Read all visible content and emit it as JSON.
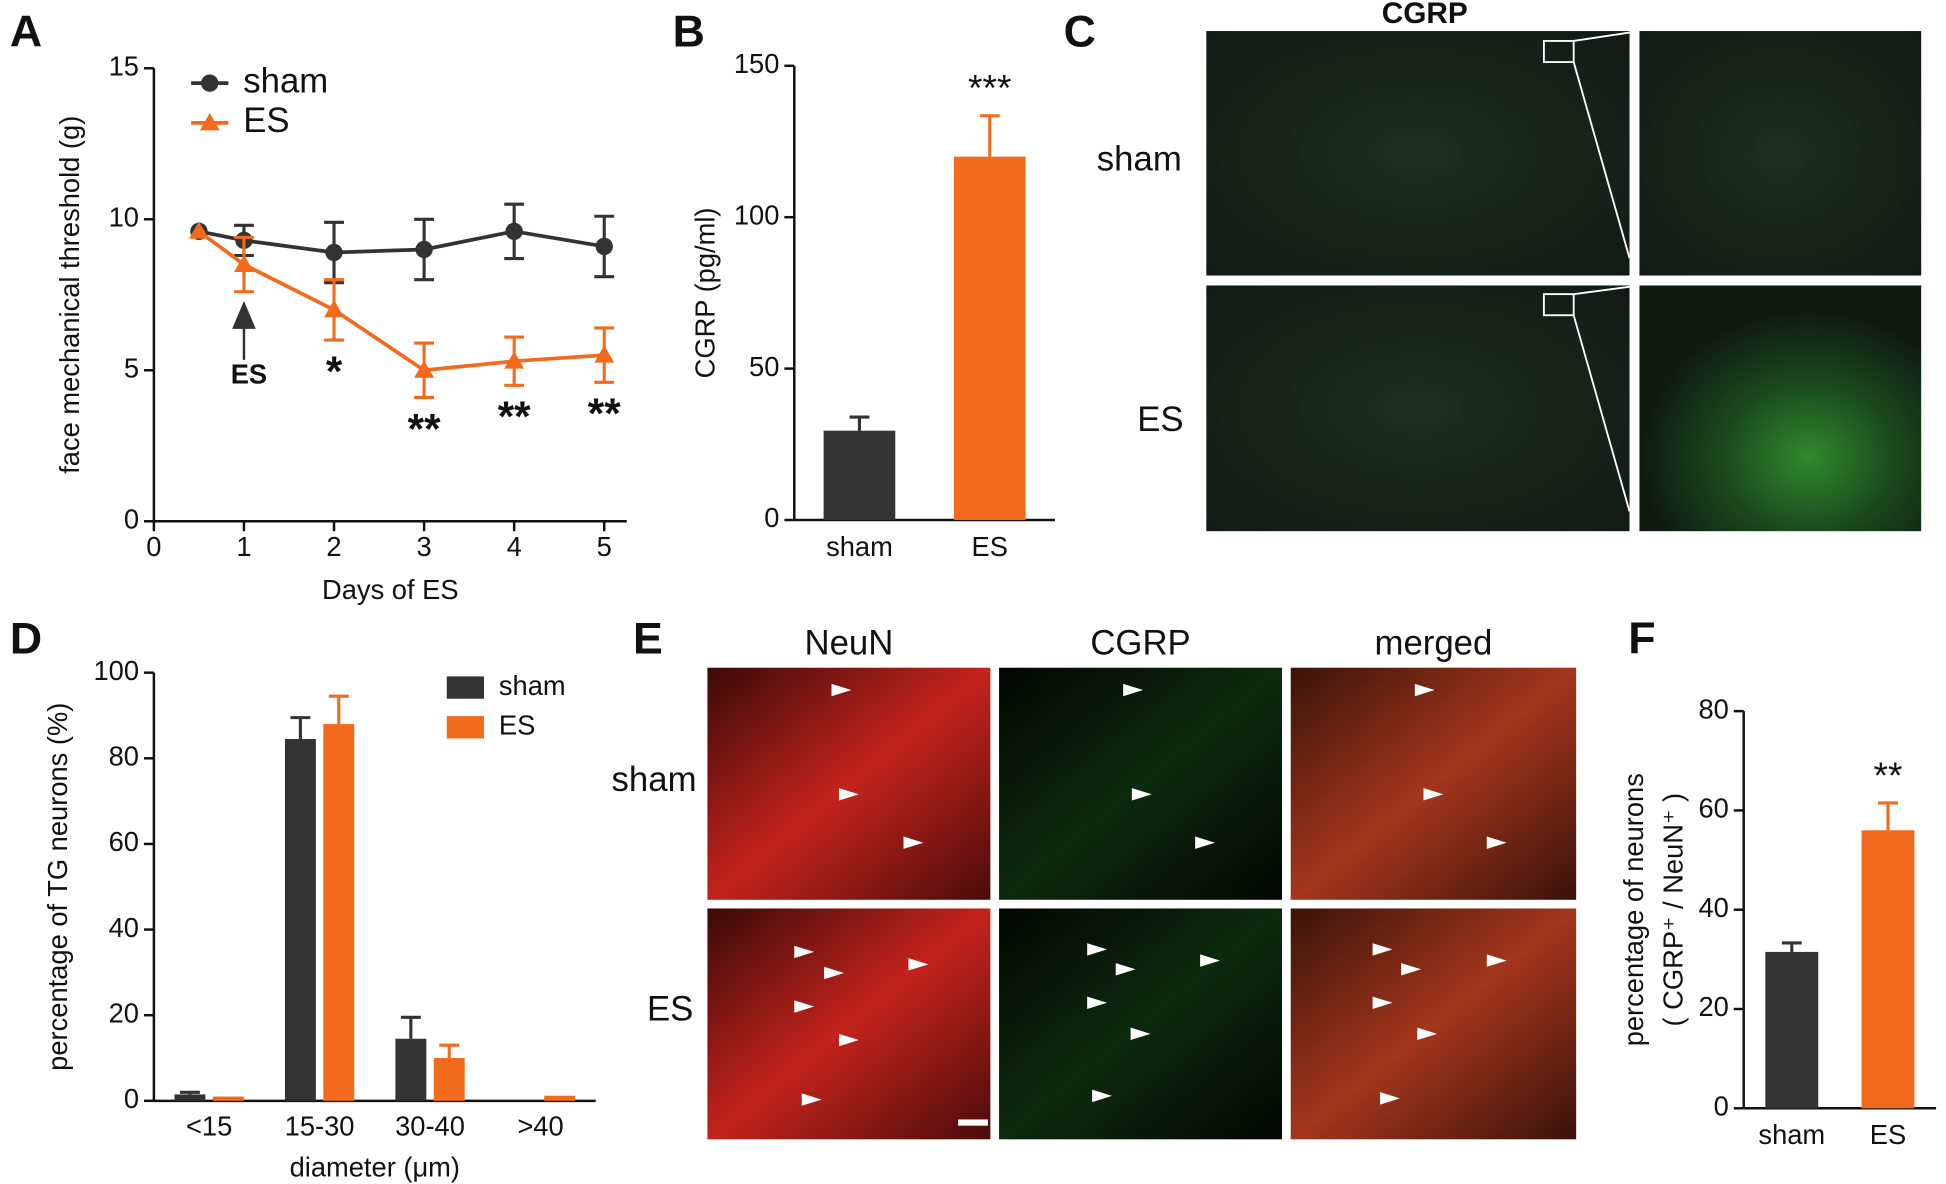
{
  "chart_data": [
    {
      "type": "line",
      "panel": "A",
      "xlabel": "Days of ES",
      "ylabel": "face mechanical threshold (g)",
      "x": [
        0.5,
        1,
        2,
        3,
        4,
        5
      ],
      "xlim": [
        0,
        5.25
      ],
      "xticks": [
        0,
        1,
        2,
        3,
        4,
        5
      ],
      "ylim": [
        0,
        15
      ],
      "yticks": [
        0,
        5,
        10,
        15
      ],
      "legend": "upper left",
      "series": [
        {
          "name": "sham",
          "color": "#333333",
          "marker": "circle",
          "values": [
            9.6,
            9.3,
            8.9,
            9.0,
            9.6,
            9.1
          ],
          "errors": [
            null,
            0.5,
            1.0,
            1.0,
            0.9,
            1.0
          ]
        },
        {
          "name": "ES",
          "color": "#f26b1d",
          "marker": "triangle",
          "values": [
            9.6,
            8.5,
            7.0,
            5.0,
            5.3,
            5.5
          ],
          "errors": [
            null,
            0.9,
            1.0,
            0.9,
            0.8,
            0.9
          ],
          "significance": [
            null,
            null,
            "*",
            "**",
            "**",
            "**"
          ]
        }
      ],
      "annotations": [
        {
          "text": "ES",
          "x": 1
        }
      ]
    },
    {
      "type": "bar",
      "panel": "B",
      "ylabel": "CGRP (pg/ml)",
      "categories": [
        "sham",
        "ES"
      ],
      "values": [
        29.5,
        120
      ],
      "errors": [
        4.5,
        13.5
      ],
      "colors": [
        "#333333",
        "#f26b1d"
      ],
      "significance": [
        null,
        "***"
      ],
      "ylim": [
        0,
        150
      ],
      "yticks": [
        0,
        50,
        100,
        150
      ]
    },
    {
      "type": "grouped_bar",
      "panel": "D",
      "xlabel": "diameter (μm)",
      "ylabel": "percentage of TG neurons (%)",
      "categories": [
        "<15",
        "15-30",
        "30-40",
        ">40"
      ],
      "legend": "upper right",
      "series": [
        {
          "name": "sham",
          "color": "#333333",
          "values": [
            1.5,
            84.5,
            14.5,
            0
          ],
          "errors": [
            0.5,
            5,
            5,
            null
          ]
        },
        {
          "name": "ES",
          "color": "#f26b1d",
          "values": [
            1,
            88,
            10,
            1.2
          ],
          "errors": [
            null,
            6.5,
            3,
            null
          ]
        }
      ],
      "ylim": [
        0,
        100
      ],
      "yticks": [
        0,
        20,
        40,
        60,
        80,
        100
      ]
    },
    {
      "type": "bar",
      "panel": "F",
      "ylabel": [
        "percentage of neurons",
        "( CGRP⁺ / NeuN⁺ )"
      ],
      "categories": [
        "sham",
        "ES"
      ],
      "values": [
        31.5,
        56
      ],
      "errors": [
        1.8,
        5.5
      ],
      "colors": [
        "#333333",
        "#f26b1d"
      ],
      "significance": [
        null,
        "**"
      ],
      "ylim": [
        0,
        80
      ],
      "yticks": [
        0,
        20,
        40,
        60,
        80
      ]
    }
  ],
  "panel_c": {
    "panel": "C",
    "title": "CGRP",
    "rows": [
      "sham",
      "ES"
    ]
  },
  "panel_e": {
    "panel": "E",
    "columns": [
      "NeuN",
      "CGRP",
      "merged"
    ],
    "rows": [
      "sham",
      "ES"
    ]
  }
}
